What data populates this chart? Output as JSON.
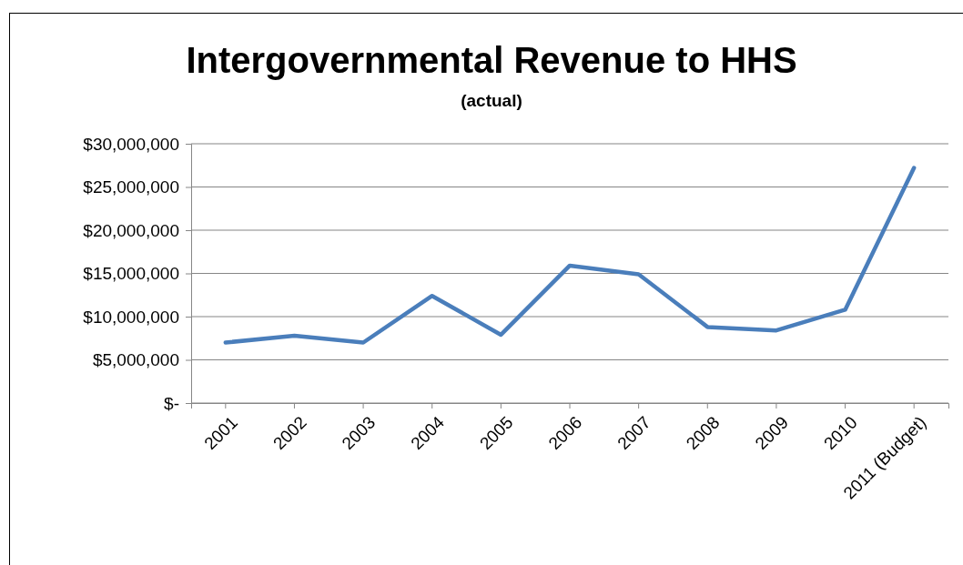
{
  "chart_data": {
    "type": "line",
    "title": "Intergovernmental Revenue to HHS",
    "subtitle": "(actual)",
    "categories": [
      "2001",
      "2002",
      "2003",
      "2004",
      "2005",
      "2006",
      "2007",
      "2008",
      "2009",
      "2010",
      "2011 (Budget)"
    ],
    "series": [
      {
        "color": "#4a7ebb",
        "values": [
          7000000,
          7800000,
          7000000,
          12400000,
          7900000,
          15900000,
          14900000,
          8800000,
          8400000,
          10800000,
          27200000
        ]
      }
    ],
    "ylim": [
      0,
      30000000
    ],
    "yticks": [
      {
        "value": 0,
        "label": "$-"
      },
      {
        "value": 5000000,
        "label": "$5,000,000"
      },
      {
        "value": 10000000,
        "label": "$10,000,000"
      },
      {
        "value": 15000000,
        "label": "$15,000,000"
      },
      {
        "value": 20000000,
        "label": "$20,000,000"
      },
      {
        "value": 25000000,
        "label": "$25,000,000"
      },
      {
        "value": 30000000,
        "label": "$30,000,000"
      }
    ],
    "grid": "y",
    "marker": "none",
    "line_style": "solid"
  }
}
